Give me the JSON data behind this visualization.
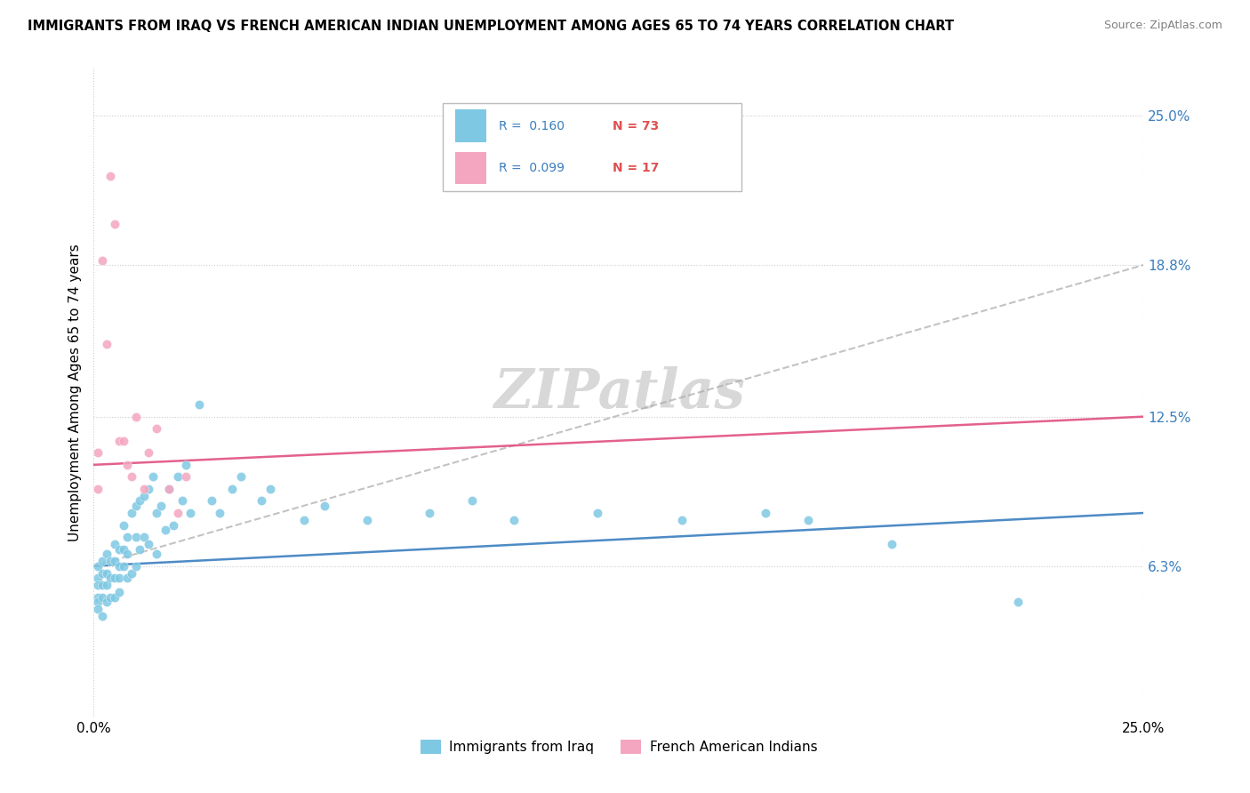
{
  "title": "IMMIGRANTS FROM IRAQ VS FRENCH AMERICAN INDIAN UNEMPLOYMENT AMONG AGES 65 TO 74 YEARS CORRELATION CHART",
  "source": "Source: ZipAtlas.com",
  "ylabel": "Unemployment Among Ages 65 to 74 years",
  "xlim": [
    0.0,
    0.25
  ],
  "ylim": [
    0.0,
    0.27
  ],
  "xtick_labels": [
    "0.0%",
    "25.0%"
  ],
  "xtick_values": [
    0.0,
    0.25
  ],
  "ytick_labels": [
    "6.3%",
    "12.5%",
    "18.8%",
    "25.0%"
  ],
  "ytick_values": [
    0.063,
    0.125,
    0.188,
    0.25
  ],
  "legend_r1": "R =  0.160",
  "legend_n1": "N = 73",
  "legend_r2": "R =  0.099",
  "legend_n2": "N = 17",
  "color_blue": "#7ec8e3",
  "color_pink": "#f4a6c0",
  "trendline_blue_color": "#3a7ebf",
  "trendline_pink_color": "#e05080",
  "trendline_gray_color": "#aaaaaa",
  "watermark_color": "#d8d8d8",
  "r_color": "#3a7ebf",
  "n_color": "#e05050",
  "iraq_x": [
    0.001,
    0.001,
    0.001,
    0.001,
    0.001,
    0.001,
    0.002,
    0.002,
    0.002,
    0.002,
    0.002,
    0.003,
    0.003,
    0.003,
    0.003,
    0.004,
    0.004,
    0.004,
    0.005,
    0.005,
    0.005,
    0.005,
    0.006,
    0.006,
    0.006,
    0.006,
    0.007,
    0.007,
    0.007,
    0.008,
    0.008,
    0.008,
    0.009,
    0.009,
    0.01,
    0.01,
    0.01,
    0.011,
    0.011,
    0.012,
    0.012,
    0.013,
    0.013,
    0.014,
    0.015,
    0.015,
    0.016,
    0.017,
    0.018,
    0.019,
    0.02,
    0.021,
    0.022,
    0.023,
    0.025,
    0.028,
    0.03,
    0.033,
    0.035,
    0.04,
    0.042,
    0.05,
    0.055,
    0.065,
    0.08,
    0.09,
    0.1,
    0.12,
    0.14,
    0.16,
    0.17,
    0.19,
    0.22
  ],
  "iraq_y": [
    0.063,
    0.058,
    0.055,
    0.05,
    0.048,
    0.045,
    0.065,
    0.06,
    0.055,
    0.05,
    0.042,
    0.068,
    0.06,
    0.055,
    0.048,
    0.065,
    0.058,
    0.05,
    0.072,
    0.065,
    0.058,
    0.05,
    0.07,
    0.063,
    0.058,
    0.052,
    0.08,
    0.07,
    0.063,
    0.075,
    0.068,
    0.058,
    0.085,
    0.06,
    0.088,
    0.075,
    0.063,
    0.09,
    0.07,
    0.092,
    0.075,
    0.095,
    0.072,
    0.1,
    0.085,
    0.068,
    0.088,
    0.078,
    0.095,
    0.08,
    0.1,
    0.09,
    0.105,
    0.085,
    0.13,
    0.09,
    0.085,
    0.095,
    0.1,
    0.09,
    0.095,
    0.082,
    0.088,
    0.082,
    0.085,
    0.09,
    0.082,
    0.085,
    0.082,
    0.085,
    0.082,
    0.072,
    0.048
  ],
  "french_x": [
    0.001,
    0.001,
    0.002,
    0.003,
    0.004,
    0.005,
    0.006,
    0.007,
    0.008,
    0.009,
    0.01,
    0.012,
    0.013,
    0.015,
    0.018,
    0.02,
    0.022
  ],
  "french_y": [
    0.095,
    0.11,
    0.19,
    0.155,
    0.225,
    0.205,
    0.115,
    0.115,
    0.105,
    0.1,
    0.125,
    0.095,
    0.11,
    0.12,
    0.095,
    0.085,
    0.1
  ],
  "trendline_blue_start_y": 0.063,
  "trendline_blue_end_y": 0.085,
  "trendline_pink_start_y": 0.105,
  "trendline_pink_end_y": 0.125
}
